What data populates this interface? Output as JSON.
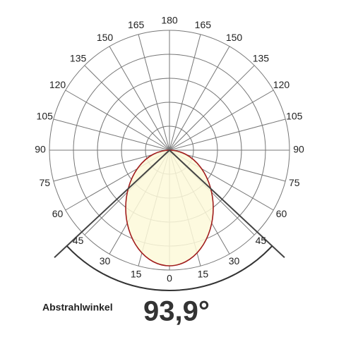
{
  "chart_data": {
    "type": "polar",
    "angle_ticks": [
      0,
      15,
      30,
      45,
      60,
      75,
      90,
      105,
      120,
      135,
      150,
      165,
      180
    ],
    "beam_label": "Abstrahlwinkel",
    "beam_angle": {
      "value": 93.9,
      "label": "93,9°"
    },
    "grid": true,
    "curve_color": "#a11d1d"
  }
}
